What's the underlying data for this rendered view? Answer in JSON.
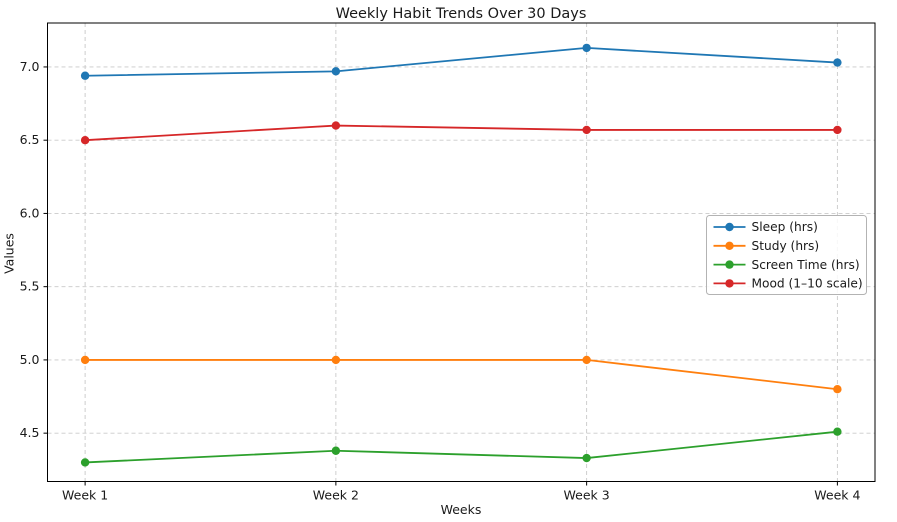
{
  "chart_data": {
    "type": "line",
    "title": "Weekly Habit Trends Over 30 Days",
    "xlabel": "Weeks",
    "ylabel": "Values",
    "categories": [
      "Week 1",
      "Week 2",
      "Week 3",
      "Week 4"
    ],
    "series": [
      {
        "name": "Sleep (hrs)",
        "color": "#1f77b4",
        "values": [
          6.94,
          6.97,
          7.13,
          7.03
        ]
      },
      {
        "name": "Study (hrs)",
        "color": "#ff7f0e",
        "values": [
          5.0,
          5.0,
          5.0,
          4.8
        ]
      },
      {
        "name": "Screen Time (hrs)",
        "color": "#2ca02c",
        "values": [
          4.3,
          4.38,
          4.33,
          4.51
        ]
      },
      {
        "name": "Mood (1–10 scale)",
        "color": "#d62728",
        "values": [
          6.5,
          6.6,
          6.57,
          6.57
        ]
      }
    ],
    "yticks": [
      "4.5",
      "5.0",
      "5.5",
      "6.0",
      "6.5",
      "7.0"
    ],
    "ylim": [
      4.17,
      7.3
    ],
    "grid": "dashed both axes",
    "legend_position": "center right",
    "marker": "circle",
    "colors": {
      "grid": "#c9c9c9",
      "spine": "#000000",
      "legend_border": "#b3b3b3",
      "background": "#ffffff"
    }
  }
}
